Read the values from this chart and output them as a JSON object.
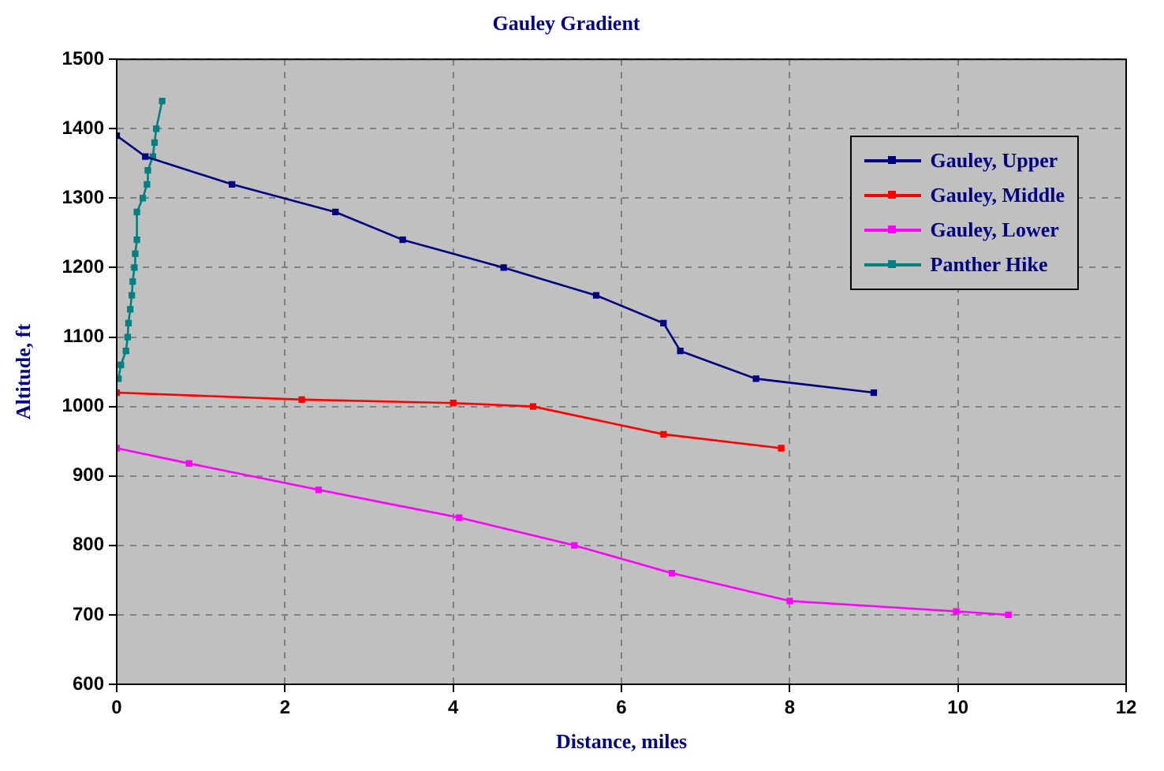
{
  "chart_data": {
    "type": "line",
    "title": "Gauley Gradient",
    "xlabel": "Distance, miles",
    "ylabel": "Altitude, ft",
    "xlim": [
      0,
      12
    ],
    "xticks": [
      0,
      2,
      4,
      6,
      8,
      10,
      12
    ],
    "ylim": [
      600,
      1500
    ],
    "yticks": [
      600,
      700,
      800,
      900,
      1000,
      1100,
      1200,
      1300,
      1400,
      1500
    ],
    "grid": true,
    "legend": "top right",
    "marker": "square",
    "line_style": "solid",
    "series": [
      {
        "name": "Gauley, Upper",
        "color": "#000080",
        "x": [
          0,
          0.34,
          1.37,
          2.6,
          3.4,
          4.6,
          5.7,
          6.5,
          6.7,
          7.6,
          9.0
        ],
        "values": [
          1390,
          1360,
          1320,
          1280,
          1240,
          1200,
          1160,
          1120,
          1080,
          1040,
          1020
        ]
      },
      {
        "name": "Gauley, Middle",
        "color": "#ff0000",
        "x": [
          0,
          2.2,
          4.0,
          4.95,
          6.5,
          7.9
        ],
        "values": [
          1020,
          1010,
          1005,
          1000,
          960,
          940
        ]
      },
      {
        "name": "Gauley, Lower",
        "color": "#ff00ff",
        "x": [
          0,
          0.86,
          2.4,
          4.07,
          5.44,
          6.6,
          8.0,
          9.98,
          10.6
        ],
        "values": [
          940,
          918,
          880,
          840,
          800,
          760,
          720,
          705,
          700
        ]
      },
      {
        "name": "Panther Hike",
        "color": "#008080",
        "x": [
          0.02,
          0.05,
          0.11,
          0.13,
          0.14,
          0.16,
          0.18,
          0.19,
          0.21,
          0.22,
          0.24,
          0.24,
          0.31,
          0.36,
          0.37,
          0.43,
          0.45,
          0.47,
          0.54
        ],
        "values": [
          1040,
          1060,
          1080,
          1100,
          1120,
          1140,
          1160,
          1180,
          1200,
          1220,
          1240,
          1280,
          1300,
          1320,
          1340,
          1360,
          1380,
          1400,
          1440
        ]
      }
    ]
  }
}
